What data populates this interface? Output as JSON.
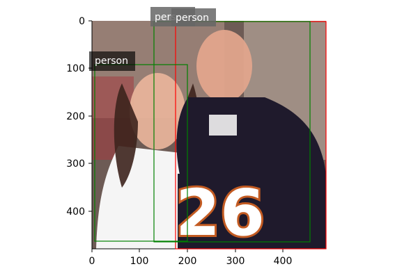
{
  "axes": {
    "x_ticks": [
      "0",
      "100",
      "200",
      "300",
      "400"
    ],
    "y_ticks": [
      "0",
      "100",
      "200",
      "300",
      "400"
    ]
  },
  "image": {
    "jersey_number": "26"
  },
  "detections": [
    {
      "label": "person",
      "color": "#ff0000"
    },
    {
      "label": "person",
      "color": "#008000"
    },
    {
      "label": "person",
      "color": "#008000"
    }
  ]
}
